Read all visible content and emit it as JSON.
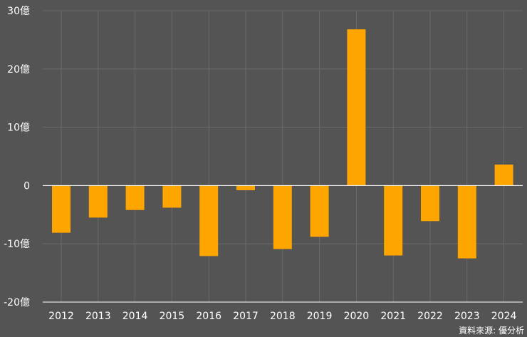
{
  "chart_data": {
    "type": "bar",
    "title": "",
    "xlabel": "",
    "ylabel": "",
    "unit": "億",
    "categories": [
      "2012",
      "2013",
      "2014",
      "2015",
      "2016",
      "2017",
      "2018",
      "2019",
      "2020",
      "2021",
      "2022",
      "2023",
      "2024"
    ],
    "values": [
      -8.1,
      -5.5,
      -4.2,
      -3.8,
      -12.1,
      -0.8,
      -10.9,
      -8.8,
      26.8,
      -12.0,
      -6.1,
      -12.5,
      3.6
    ],
    "ylim": [
      -20,
      30
    ],
    "yticks": [
      30,
      20,
      10,
      0,
      -10,
      -20
    ],
    "ytick_labels": [
      "30億",
      "20億",
      "10億",
      "0",
      "-10億",
      "-20億"
    ],
    "grid": true,
    "source_text": "資料來源: 優分析",
    "colors": {
      "background": "#545454",
      "bar": "#ffa500",
      "grid": "#6a6a6a",
      "axis": "#ffffff",
      "text": "#ffffff"
    }
  }
}
